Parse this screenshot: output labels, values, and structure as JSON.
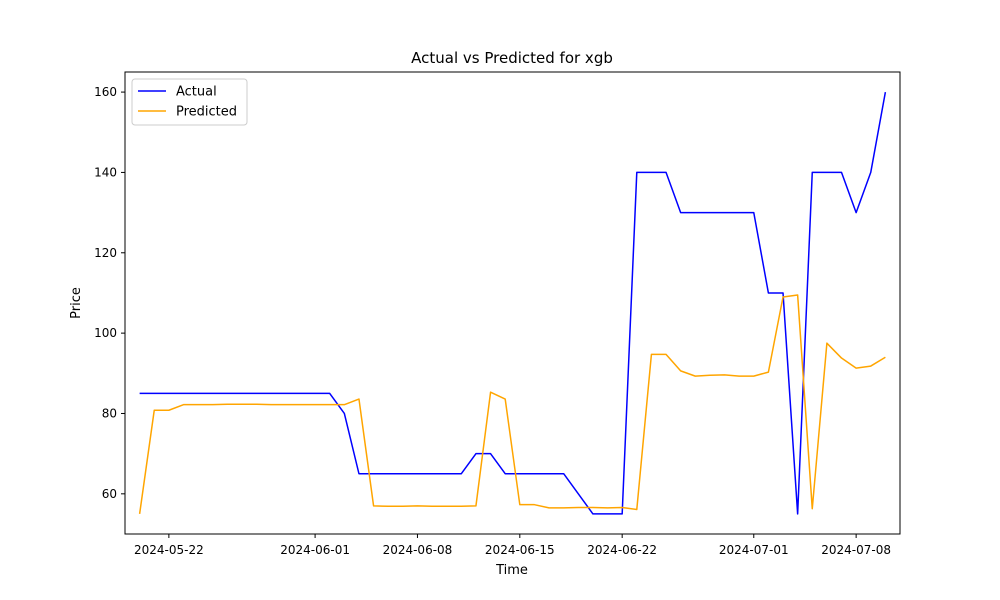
{
  "chart_data": {
    "type": "line",
    "title": "Actual vs Predicted for xgb",
    "xlabel": "Time",
    "ylabel": "Price",
    "x_start": "2024-05-20",
    "x_end": "2024-07-10",
    "xlim": [
      "2024-05-19",
      "2024-07-11"
    ],
    "ylim": [
      50,
      165
    ],
    "xticks": [
      {
        "date": "2024-05-22",
        "label": "2024-05-22"
      },
      {
        "date": "2024-06-01",
        "label": "2024-06-01"
      },
      {
        "date": "2024-06-08",
        "label": "2024-06-08"
      },
      {
        "date": "2024-06-15",
        "label": "2024-06-15"
      },
      {
        "date": "2024-06-22",
        "label": "2024-06-22"
      },
      {
        "date": "2024-07-01",
        "label": "2024-07-01"
      },
      {
        "date": "2024-07-08",
        "label": "2024-07-08"
      }
    ],
    "yticks": [
      60,
      80,
      100,
      120,
      140,
      160
    ],
    "grid": false,
    "legend": "upper-left",
    "series": [
      {
        "name": "Actual",
        "color": "#0000ff",
        "values": [
          85,
          85,
          85,
          85,
          85,
          85,
          85,
          85,
          85,
          85,
          85,
          85,
          85,
          85,
          80,
          65,
          65,
          65,
          65,
          65,
          65,
          65,
          65,
          70,
          70,
          65,
          65,
          65,
          65,
          65,
          60,
          55,
          55,
          55,
          140,
          140,
          140,
          130,
          130,
          130,
          130,
          130,
          130,
          110,
          110,
          55,
          140,
          140,
          140,
          130,
          140,
          160
        ]
      },
      {
        "name": "Predicted",
        "color": "#ffa500",
        "values": [
          55,
          80.8,
          80.8,
          82.2,
          82.2,
          82.2,
          82.3,
          82.3,
          82.3,
          82.2,
          82.2,
          82.2,
          82.2,
          82.2,
          82.2,
          83.6,
          57,
          56.9,
          56.9,
          57,
          56.9,
          56.9,
          56.9,
          57,
          85.3,
          83.6,
          57.3,
          57.3,
          56.5,
          56.5,
          56.6,
          56.6,
          56.5,
          56.6,
          56.1,
          94.7,
          94.7,
          90.6,
          89.3,
          89.5,
          89.6,
          89.3,
          89.3,
          90.3,
          109,
          109.5,
          56.3,
          97.5,
          93.8,
          91.3,
          91.8,
          94
        ]
      }
    ]
  }
}
